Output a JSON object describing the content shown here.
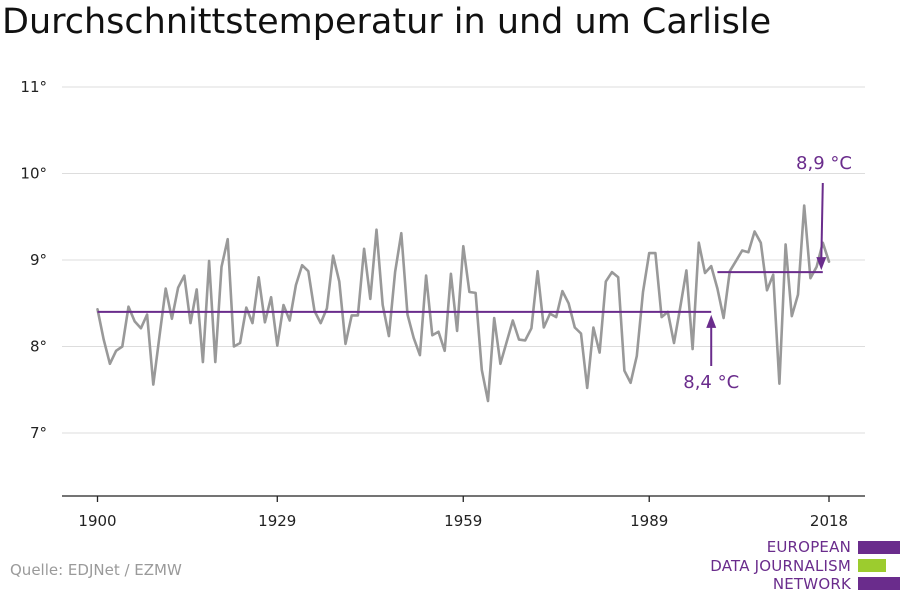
{
  "title": "Durchschnittstemperatur in und um Carlisle",
  "source": "Quelle: EDJNet / EZMW",
  "logo": {
    "lines": [
      "EUROPEAN",
      "DATA JOURNALISM",
      "NETWORK"
    ],
    "colors": {
      "purple": "#6a2c8c",
      "green": "#9ccc2e"
    }
  },
  "colors": {
    "series": "#999999",
    "reference": "#6a2c8c",
    "grid": "#dddddd",
    "axis": "#222222",
    "text": "#222222"
  },
  "chart_data": {
    "type": "line",
    "title": "Durchschnittstemperatur in und um Carlisle",
    "xlabel": "",
    "ylabel": "",
    "xlim": [
      1900,
      2018
    ],
    "ylim": [
      7,
      11
    ],
    "x_ticks": [
      "1900",
      "1929",
      "1959",
      "1989",
      "2018"
    ],
    "y_ticks": [
      "7°",
      "8°",
      "9°",
      "10°",
      "11°"
    ],
    "grid": true,
    "x": [
      1900,
      1901,
      1902,
      1903,
      1904,
      1905,
      1906,
      1907,
      1908,
      1909,
      1910,
      1911,
      1912,
      1913,
      1914,
      1915,
      1916,
      1917,
      1918,
      1919,
      1920,
      1921,
      1922,
      1923,
      1924,
      1925,
      1926,
      1927,
      1928,
      1929,
      1930,
      1931,
      1932,
      1933,
      1934,
      1935,
      1936,
      1937,
      1938,
      1939,
      1940,
      1941,
      1942,
      1943,
      1944,
      1945,
      1946,
      1947,
      1948,
      1949,
      1950,
      1951,
      1952,
      1953,
      1954,
      1955,
      1956,
      1957,
      1958,
      1959,
      1960,
      1961,
      1962,
      1963,
      1964,
      1965,
      1966,
      1967,
      1968,
      1969,
      1970,
      1971,
      1972,
      1973,
      1974,
      1975,
      1976,
      1977,
      1978,
      1979,
      1980,
      1981,
      1982,
      1983,
      1984,
      1985,
      1986,
      1987,
      1988,
      1989,
      1990,
      1991,
      1992,
      1993,
      1994,
      1995,
      1996,
      1997,
      1998,
      1999,
      2000,
      2001,
      2002,
      2003,
      2004,
      2005,
      2006,
      2007,
      2008,
      2009,
      2010,
      2011,
      2012,
      2013,
      2014,
      2015,
      2016,
      2017,
      2018
    ],
    "series": [
      {
        "values": [
          8.43,
          8.08,
          7.8,
          7.95,
          8.0,
          8.46,
          8.29,
          8.21,
          8.37,
          7.56,
          8.12,
          8.67,
          8.32,
          8.68,
          8.82,
          8.27,
          8.66,
          7.82,
          8.99,
          7.82,
          8.92,
          9.24,
          8.0,
          8.04,
          8.45,
          8.27,
          8.8,
          8.28,
          8.57,
          8.01,
          8.48,
          8.3,
          8.71,
          8.94,
          8.87,
          8.41,
          8.27,
          8.44,
          9.05,
          8.75,
          8.03,
          8.36,
          8.36,
          9.13,
          8.55,
          9.35,
          8.48,
          8.12,
          8.86,
          9.31,
          8.37,
          8.1,
          7.9,
          8.82,
          8.13,
          8.17,
          7.95,
          8.84,
          8.18,
          9.16,
          8.63,
          8.62,
          7.73,
          7.37,
          8.33,
          7.8,
          8.05,
          8.3,
          8.08,
          8.07,
          8.21,
          8.87,
          8.22,
          8.38,
          8.34,
          8.64,
          8.5,
          8.22,
          8.15,
          7.52,
          8.22,
          7.93,
          8.75,
          8.86,
          8.8,
          7.72,
          7.58,
          7.89,
          8.63,
          9.08,
          9.08,
          8.34,
          8.4,
          8.04,
          8.45,
          8.88,
          7.97,
          9.2,
          8.85,
          8.93,
          8.67,
          8.33,
          8.87,
          8.99,
          9.11,
          9.09,
          9.33,
          9.2,
          8.65,
          8.83,
          7.57,
          9.18,
          8.35,
          8.6,
          9.63,
          8.79,
          8.92,
          9.2,
          8.98
        ]
      }
    ],
    "reference_lines": [
      {
        "from": 1900,
        "to": 1999,
        "value": 8.4,
        "label": "8,4 °C"
      },
      {
        "from": 2000,
        "to": 2017,
        "value": 8.86,
        "label": "8,9 °C"
      }
    ]
  }
}
